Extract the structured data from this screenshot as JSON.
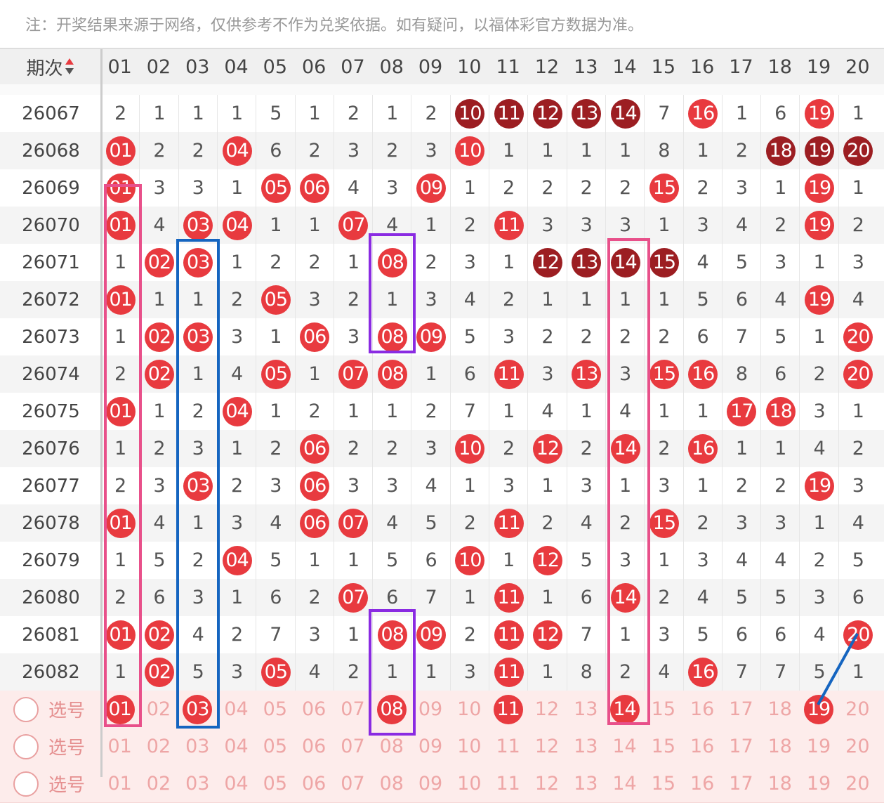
{
  "note": "注：开奖结果来源于网络，仅供参考不作为兑奖依据。如有疑问，以福体彩官方数据为准。",
  "header": {
    "issue": "期次",
    "columns": [
      "01",
      "02",
      "03",
      "04",
      "05",
      "06",
      "07",
      "08",
      "09",
      "10",
      "11",
      "12",
      "13",
      "14",
      "15",
      "16",
      "17",
      "18",
      "19",
      "20"
    ]
  },
  "rows": [
    {
      "issue": "26067",
      "cells": [
        "2",
        "1",
        "1",
        "1",
        "5",
        "1",
        "2",
        "1",
        "2",
        "10",
        "11",
        "12",
        "13",
        "14",
        "7",
        "16",
        "1",
        "6",
        "19",
        "1"
      ]
    },
    {
      "issue": "26068",
      "cells": [
        "01",
        "2",
        "2",
        "04",
        "6",
        "2",
        "3",
        "2",
        "3",
        "10",
        "1",
        "1",
        "1",
        "1",
        "8",
        "1",
        "2",
        "18",
        "19",
        "20"
      ]
    },
    {
      "issue": "26069",
      "cells": [
        "01",
        "3",
        "3",
        "1",
        "05",
        "06",
        "4",
        "3",
        "09",
        "1",
        "2",
        "2",
        "2",
        "2",
        "15",
        "2",
        "3",
        "1",
        "19",
        "1"
      ]
    },
    {
      "issue": "26070",
      "cells": [
        "01",
        "4",
        "03",
        "04",
        "1",
        "1",
        "07",
        "4",
        "1",
        "2",
        "11",
        "3",
        "3",
        "3",
        "1",
        "3",
        "4",
        "2",
        "19",
        "2"
      ]
    },
    {
      "issue": "26071",
      "cells": [
        "1",
        "02",
        "03",
        "1",
        "2",
        "2",
        "1",
        "08",
        "2",
        "3",
        "1",
        "12",
        "13",
        "14",
        "15",
        "4",
        "5",
        "3",
        "1",
        "3"
      ]
    },
    {
      "issue": "26072",
      "cells": [
        "01",
        "1",
        "1",
        "2",
        "05",
        "3",
        "2",
        "1",
        "3",
        "4",
        "2",
        "1",
        "1",
        "1",
        "1",
        "5",
        "6",
        "4",
        "19",
        "4"
      ]
    },
    {
      "issue": "26073",
      "cells": [
        "1",
        "02",
        "03",
        "3",
        "1",
        "06",
        "3",
        "08",
        "09",
        "5",
        "3",
        "2",
        "2",
        "2",
        "2",
        "6",
        "7",
        "5",
        "1",
        "20"
      ]
    },
    {
      "issue": "26074",
      "cells": [
        "2",
        "02",
        "1",
        "4",
        "05",
        "1",
        "07",
        "08",
        "1",
        "6",
        "11",
        "3",
        "13",
        "3",
        "15",
        "16",
        "8",
        "6",
        "2",
        "20"
      ]
    },
    {
      "issue": "26075",
      "cells": [
        "01",
        "1",
        "2",
        "04",
        "1",
        "2",
        "1",
        "1",
        "2",
        "7",
        "1",
        "4",
        "1",
        "4",
        "1",
        "1",
        "17",
        "18",
        "3",
        "1"
      ]
    },
    {
      "issue": "26076",
      "cells": [
        "1",
        "2",
        "3",
        "1",
        "2",
        "06",
        "2",
        "2",
        "3",
        "10",
        "2",
        "12",
        "2",
        "14",
        "2",
        "16",
        "1",
        "1",
        "4",
        "2"
      ]
    },
    {
      "issue": "26077",
      "cells": [
        "2",
        "3",
        "03",
        "2",
        "3",
        "06",
        "3",
        "3",
        "4",
        "1",
        "3",
        "1",
        "3",
        "1",
        "3",
        "1",
        "2",
        "2",
        "19",
        "3"
      ]
    },
    {
      "issue": "26078",
      "cells": [
        "01",
        "4",
        "1",
        "3",
        "4",
        "06",
        "07",
        "4",
        "5",
        "2",
        "11",
        "2",
        "4",
        "2",
        "15",
        "2",
        "3",
        "3",
        "1",
        "4"
      ]
    },
    {
      "issue": "26079",
      "cells": [
        "1",
        "5",
        "2",
        "04",
        "5",
        "1",
        "1",
        "5",
        "6",
        "10",
        "1",
        "12",
        "5",
        "3",
        "1",
        "3",
        "4",
        "4",
        "2",
        "5"
      ]
    },
    {
      "issue": "26080",
      "cells": [
        "2",
        "6",
        "3",
        "1",
        "6",
        "2",
        "07",
        "6",
        "7",
        "1",
        "11",
        "1",
        "6",
        "14",
        "2",
        "4",
        "5",
        "5",
        "3",
        "6"
      ]
    },
    {
      "issue": "26081",
      "cells": [
        "01",
        "02",
        "4",
        "2",
        "7",
        "3",
        "1",
        "08",
        "09",
        "2",
        "11",
        "12",
        "7",
        "1",
        "3",
        "5",
        "6",
        "6",
        "4",
        "20"
      ]
    },
    {
      "issue": "26082",
      "cells": [
        "1",
        "02",
        "5",
        "3",
        "05",
        "4",
        "2",
        "1",
        "1",
        "3",
        "11",
        "1",
        "8",
        "2",
        "4",
        "16",
        "7",
        "7",
        "5",
        "1"
      ]
    }
  ],
  "pick_rows": [
    {
      "label": "选号",
      "numbers": [
        "01",
        "02",
        "03",
        "04",
        "05",
        "06",
        "07",
        "08",
        "09",
        "10",
        "11",
        "12",
        "13",
        "14",
        "15",
        "16",
        "17",
        "18",
        "19",
        "20"
      ],
      "selected": [
        true,
        false,
        true,
        false,
        false,
        false,
        false,
        true,
        false,
        false,
        true,
        false,
        false,
        true,
        false,
        false,
        false,
        false,
        true,
        false
      ]
    },
    {
      "label": "选号",
      "numbers": [
        "01",
        "02",
        "03",
        "04",
        "05",
        "06",
        "07",
        "08",
        "09",
        "10",
        "11",
        "12",
        "13",
        "14",
        "15",
        "16",
        "17",
        "18",
        "19",
        "20"
      ],
      "selected": [
        false,
        false,
        false,
        false,
        false,
        false,
        false,
        false,
        false,
        false,
        false,
        false,
        false,
        false,
        false,
        false,
        false,
        false,
        false,
        false
      ]
    },
    {
      "label": "选号",
      "numbers": [
        "01",
        "02",
        "03",
        "04",
        "05",
        "06",
        "07",
        "08",
        "09",
        "10",
        "11",
        "12",
        "13",
        "14",
        "15",
        "16",
        "17",
        "18",
        "19",
        "20"
      ],
      "selected": [
        false,
        false,
        false,
        false,
        false,
        false,
        false,
        false,
        false,
        false,
        false,
        false,
        false,
        false,
        false,
        false,
        false,
        false,
        false,
        false
      ]
    }
  ],
  "colors": {
    "hit": "#e83a3f",
    "streak": "#9c1e22"
  }
}
